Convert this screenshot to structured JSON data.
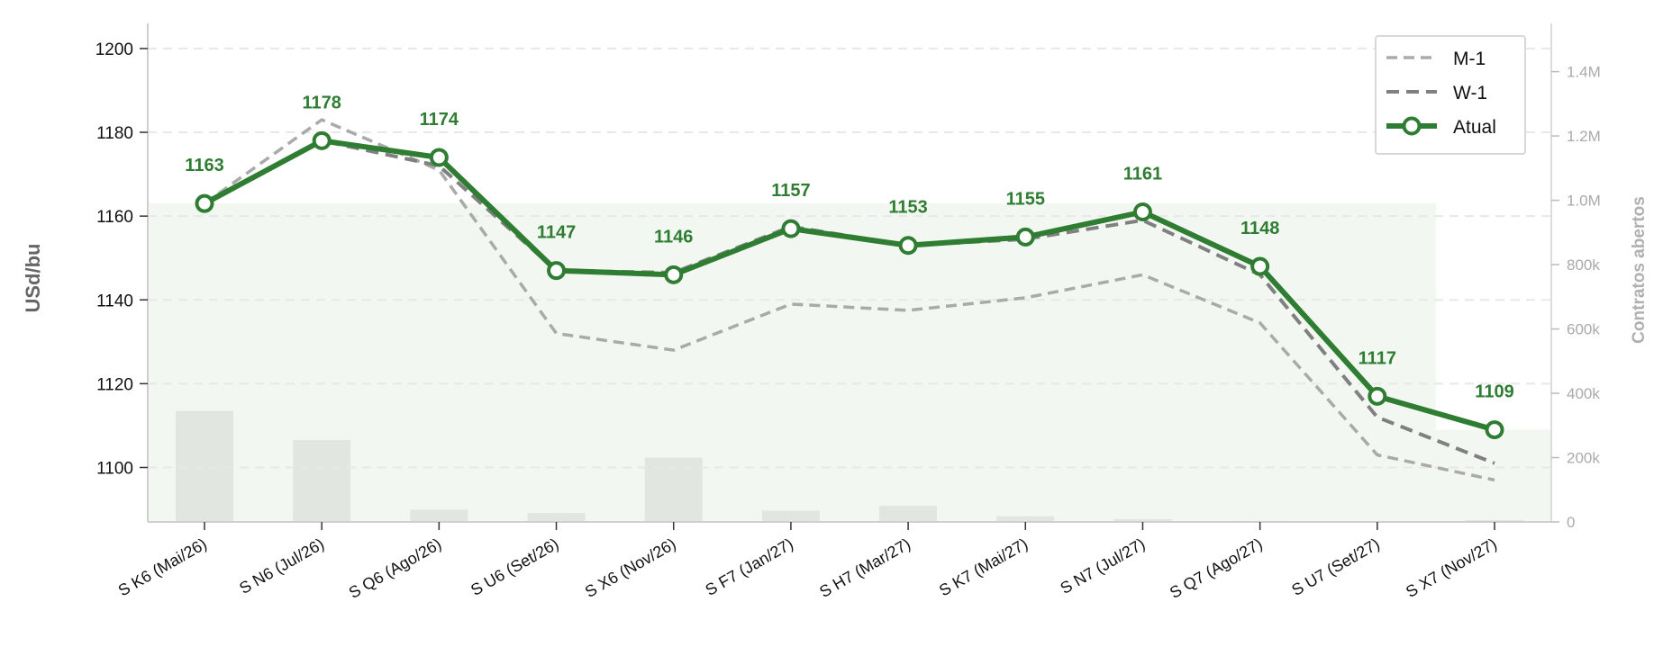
{
  "chart_data": {
    "type": "line",
    "title": "",
    "ylabel": "USd/bu",
    "y2label": "Contratos abertos",
    "ylim": [
      1087,
      1206
    ],
    "y2lim": [
      0,
      1550000
    ],
    "yticks": [
      1100,
      1120,
      1140,
      1160,
      1180,
      1200
    ],
    "y2ticks": [
      {
        "value": 0,
        "label": "0"
      },
      {
        "value": 200000,
        "label": "200k"
      },
      {
        "value": 400000,
        "label": "400k"
      },
      {
        "value": 600000,
        "label": "600k"
      },
      {
        "value": 800000,
        "label": "800k"
      },
      {
        "value": 1000000,
        "label": "1.0M"
      },
      {
        "value": 1200000,
        "label": "1.2M"
      },
      {
        "value": 1400000,
        "label": "1.4M"
      }
    ],
    "categories": [
      "S K6 (Mai/26)",
      "S N6 (Jul/26)",
      "S Q6 (Ago/26)",
      "S U6 (Set/26)",
      "S X6 (Nov/26)",
      "S F7 (Jan/27)",
      "S H7 (Mar/27)",
      "S K7 (Mai/27)",
      "S N7 (Jul/27)",
      "S Q7 (Ago/27)",
      "S U7 (Set/27)",
      "S X7 (Nov/27)"
    ],
    "series": [
      {
        "name": "M-1",
        "style": "dashed",
        "color": "#aaaaaa",
        "values": [
          1163,
          1183,
          1171,
          1132,
          1128,
          1139,
          1137.5,
          1140.5,
          1146,
          1134.5,
          1103,
          1097
        ]
      },
      {
        "name": "W-1",
        "style": "dashed",
        "color": "#808080",
        "values": [
          1163,
          1178,
          1172,
          1147,
          1146.5,
          1157.5,
          1153,
          1154.5,
          1159,
          1146,
          1112,
          1101
        ]
      },
      {
        "name": "Atual",
        "style": "solid-markers",
        "color": "#2e7d32",
        "values": [
          1163,
          1178,
          1174,
          1147,
          1146,
          1157,
          1153,
          1155,
          1161,
          1148,
          1117,
          1109
        ]
      }
    ],
    "data_labels": [
      "1163",
      "1178",
      "1174",
      "1147",
      "1146",
      "1157",
      "1153",
      "1155",
      "1161",
      "1148",
      "1117",
      "1109"
    ],
    "open_interest": {
      "values": [
        345000,
        255000,
        38000,
        28000,
        200000,
        35000,
        50000,
        18000,
        9000,
        3000,
        2000,
        6000
      ],
      "color": "#e1e6e1"
    },
    "area": {
      "color": "#f2f8f1",
      "values": [
        1163,
        1163,
        1163,
        1163,
        1163,
        1163,
        1163,
        1163,
        1163,
        1163,
        1163,
        1109
      ]
    },
    "legend": {
      "position": "top-right",
      "items": [
        "M-1",
        "W-1",
        "Atual"
      ]
    },
    "grid": {
      "y": true,
      "style": "dashed"
    }
  }
}
